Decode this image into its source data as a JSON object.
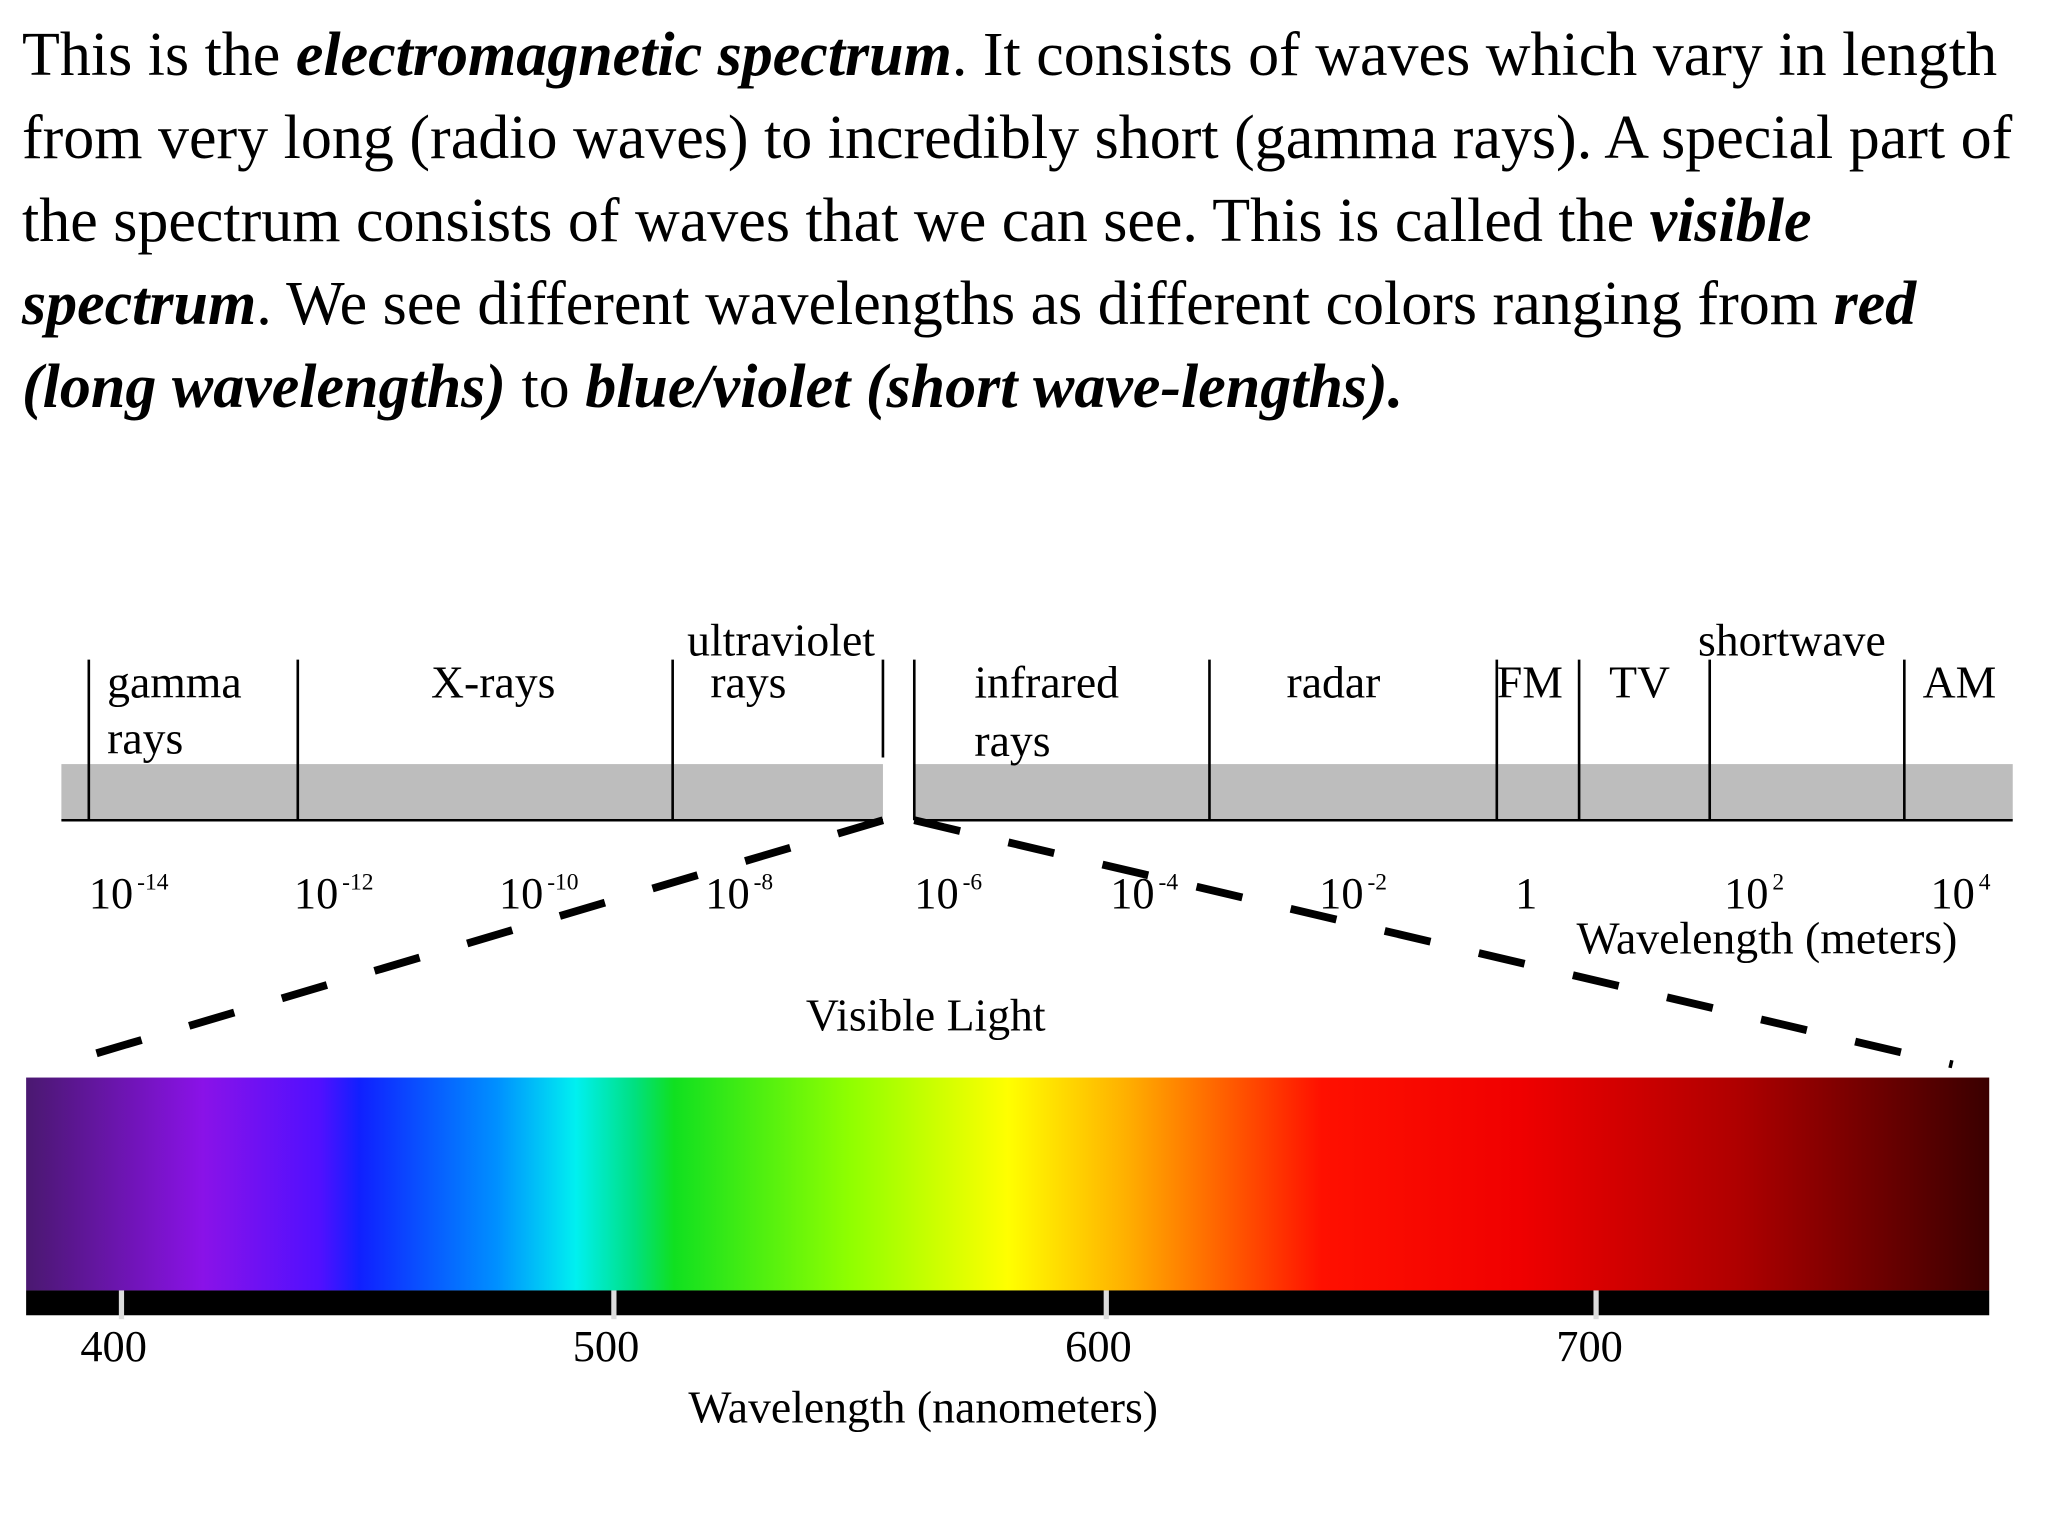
{
  "paragraph": {
    "runs": [
      {
        "text": "This is the ",
        "emphasis": false
      },
      {
        "text": "electromagnetic spectrum",
        "emphasis": true
      },
      {
        "text": ". It consists of waves which vary in length from very long (radio waves) to incredibly short (gamma rays). A special part of the spectrum consists of waves that we can see. This is called the ",
        "emphasis": false
      },
      {
        "text": "visible spectrum",
        "emphasis": true
      },
      {
        "text": ". We see different wavelengths as different colors ranging from ",
        "emphasis": false
      },
      {
        "text": "red (long wavelengths)",
        "emphasis": true
      },
      {
        "text": " to ",
        "emphasis": false
      },
      {
        "text": "blue/violet (short wave-lengths).",
        "emphasis": true
      }
    ]
  },
  "spectrum": {
    "bands": [
      {
        "lines": [
          "gamma",
          "rays"
        ]
      },
      {
        "lines": [
          "X-rays"
        ]
      },
      {
        "lines": [
          "ultraviolet",
          "rays"
        ]
      },
      {
        "lines": [
          "infrared",
          "rays"
        ]
      },
      {
        "lines": [
          "radar"
        ]
      },
      {
        "lines": [
          "FM"
        ]
      },
      {
        "lines": [
          "TV"
        ]
      },
      {
        "lines": [
          "shortwave"
        ]
      },
      {
        "lines": [
          "AM"
        ]
      }
    ],
    "wavelength_ticks": [
      {
        "base": "10",
        "exponent": "-14"
      },
      {
        "base": "10",
        "exponent": "-12"
      },
      {
        "base": "10",
        "exponent": "-10"
      },
      {
        "base": "10",
        "exponent": "-8"
      },
      {
        "base": "10",
        "exponent": "-6"
      },
      {
        "base": "10",
        "exponent": "-4"
      },
      {
        "base": "10",
        "exponent": "-2"
      },
      {
        "base": "1"
      },
      {
        "base": "10",
        "exponent": "2"
      },
      {
        "base": "10",
        "exponent": "4"
      }
    ],
    "wavelength_label": "Wavelength (meters)"
  },
  "visible": {
    "title": "Visible Light",
    "ticks": [
      "400",
      "500",
      "600",
      "700"
    ],
    "axis_label": "Wavelength (nanometers)"
  }
}
